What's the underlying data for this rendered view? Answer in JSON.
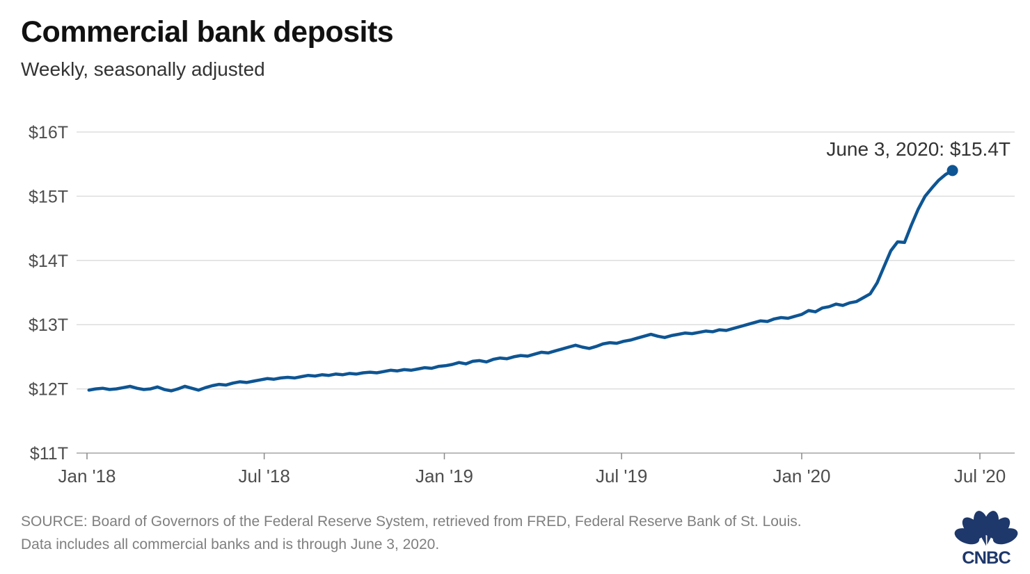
{
  "header": {
    "title": "Commercial bank deposits",
    "subtitle": "Weekly, seasonally adjusted"
  },
  "chart_data": {
    "type": "line",
    "title": "Commercial bank deposits",
    "subtitle": "Weekly, seasonally adjusted",
    "unit": "trillions of US dollars",
    "cadence": "weekly",
    "x_start": "2018-01-03",
    "x_end": "2020-06-03",
    "ylim": [
      11,
      16
    ],
    "y_ticks": [
      "$16T",
      "$15T",
      "$14T",
      "$13T",
      "$12T",
      "$11T"
    ],
    "x_ticks": [
      "Jan '18",
      "Jul '18",
      "Jan '19",
      "Jul '19",
      "Jan '20",
      "Jul '20"
    ],
    "grid": true,
    "legend": "none",
    "annotation": "June 3, 2020: $15.4T",
    "last_point": {
      "date": "June 3, 2020",
      "value_trillions": 15.4
    },
    "values": [
      11.98,
      12.0,
      12.01,
      11.99,
      12.0,
      12.02,
      12.04,
      12.01,
      11.99,
      12.0,
      12.03,
      11.99,
      11.97,
      12.0,
      12.04,
      12.01,
      11.98,
      12.02,
      12.05,
      12.07,
      12.06,
      12.09,
      12.11,
      12.1,
      12.12,
      12.14,
      12.16,
      12.15,
      12.17,
      12.18,
      12.17,
      12.19,
      12.21,
      12.2,
      12.22,
      12.21,
      12.23,
      12.22,
      12.24,
      12.23,
      12.25,
      12.26,
      12.25,
      12.27,
      12.29,
      12.28,
      12.3,
      12.29,
      12.31,
      12.33,
      12.32,
      12.35,
      12.36,
      12.38,
      12.41,
      12.39,
      12.43,
      12.44,
      12.42,
      12.46,
      12.48,
      12.47,
      12.5,
      12.52,
      12.51,
      12.54,
      12.57,
      12.56,
      12.59,
      12.62,
      12.65,
      12.68,
      12.65,
      12.63,
      12.66,
      12.7,
      12.72,
      12.71,
      12.74,
      12.76,
      12.79,
      12.82,
      12.85,
      12.82,
      12.8,
      12.83,
      12.85,
      12.87,
      12.86,
      12.88,
      12.9,
      12.89,
      12.92,
      12.91,
      12.94,
      12.97,
      13.0,
      13.03,
      13.06,
      13.05,
      13.09,
      13.11,
      13.1,
      13.13,
      13.16,
      13.22,
      13.2,
      13.26,
      13.28,
      13.32,
      13.3,
      13.34,
      13.36,
      13.42,
      13.48,
      13.65,
      13.9,
      14.15,
      14.29,
      14.28,
      14.55,
      14.8,
      15.0,
      15.13,
      15.25,
      15.34,
      15.4
    ]
  },
  "footer": {
    "source_line1": "SOURCE: Board of Governors of the Federal Reserve System, retrieved from FRED, Federal Reserve Bank of St. Louis.",
    "source_line2": "Data includes all commercial banks and is through June 3, 2020.",
    "logo_text": "CNBC"
  },
  "colors": {
    "line": "#0e5593",
    "grid": "#dddddd",
    "axis": "#bbbbbb",
    "tick": "#888888",
    "axis_text": "#4d4d4d",
    "annotation_text": "#333333",
    "title_text": "#111111",
    "subtitle_text": "#333333",
    "footer_text": "#7f7f7f",
    "logo_navy": "#1e386b"
  }
}
